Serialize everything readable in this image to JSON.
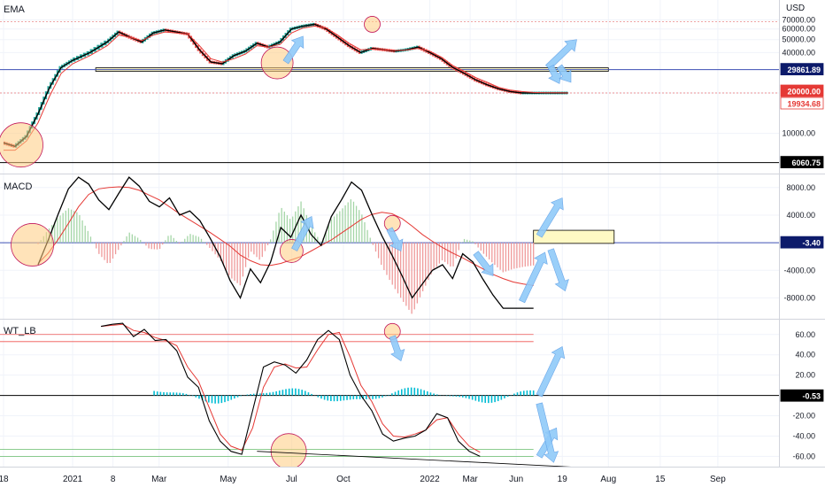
{
  "chart_data": [
    {
      "type": "line",
      "panel": "price",
      "label": "EMA",
      "currency": "USD",
      "y_scale": "log",
      "ylim": [
        5500,
        75000
      ],
      "y_ticks": [
        10000,
        20000,
        30000,
        40000,
        50000,
        60000,
        70000
      ],
      "y_tick_labels": [
        "10000.00",
        "20000.00",
        "30000.00",
        "40000.00",
        "50000.00",
        "60000.00",
        "70000.00"
      ],
      "series": [
        {
          "x": [
            0,
            2,
            4,
            6,
            8,
            10,
            12,
            15,
            18,
            20,
            22,
            24,
            26,
            28,
            30,
            32,
            34,
            36,
            38,
            40,
            42,
            44,
            46,
            48,
            50,
            52,
            54,
            56,
            58,
            60,
            62,
            64,
            66,
            68,
            70,
            72,
            74,
            76,
            78,
            80,
            82,
            84,
            86,
            88,
            90,
            92,
            94,
            96,
            98
          ],
          "values": [
            8500,
            8000,
            9500,
            14000,
            22000,
            31000,
            35000,
            40000,
            48000,
            57000,
            52000,
            48000,
            56000,
            59000,
            57000,
            55000,
            42000,
            34000,
            33000,
            38000,
            41000,
            47000,
            44000,
            48000,
            60000,
            63000,
            65000,
            60000,
            52000,
            45000,
            40000,
            43000,
            42000,
            41000,
            42000,
            44000,
            40000,
            36000,
            31000,
            28000,
            25000,
            23000,
            21500,
            20500,
            20000,
            20000,
            20000,
            20000,
            20000
          ]
        },
        {
          "x": [
            0,
            2,
            4,
            6,
            8,
            10,
            12,
            15,
            18,
            20,
            22,
            24,
            26,
            28,
            30,
            32,
            34,
            36,
            38,
            40,
            42,
            44,
            46,
            48,
            50,
            52,
            54,
            56,
            58,
            60,
            62,
            64,
            66,
            68,
            70,
            72,
            74,
            76,
            78,
            80,
            82,
            84,
            86,
            88,
            90,
            92,
            94,
            96,
            98
          ],
          "values": [
            7500,
            7500,
            8800,
            12000,
            19000,
            28000,
            33000,
            38000,
            45000,
            54000,
            52000,
            49000,
            54000,
            57000,
            56000,
            55000,
            45000,
            36000,
            34000,
            36000,
            39000,
            45000,
            44000,
            46000,
            56000,
            61000,
            63000,
            61000,
            54000,
            47000,
            42000,
            42500,
            42000,
            41500,
            41800,
            43000,
            41000,
            37000,
            32000,
            29000,
            26000,
            24000,
            22000,
            21000,
            20500,
            20200,
            20100,
            20050,
            20000
          ]
        }
      ],
      "markers": [
        20000.0,
        29861.89,
        19934.68,
        6060.75
      ],
      "marker_labels": [
        "20000.00",
        "29861.89",
        "19934.68",
        "6060.75"
      ],
      "zone": [
        29000,
        30800
      ]
    },
    {
      "type": "bar",
      "panel": "macd",
      "label": "MACD",
      "ylim": [
        -10000,
        9000
      ],
      "y_ticks": [
        8000,
        4000,
        -4000,
        -8000
      ],
      "y_tick_labels": [
        "8000.00",
        "4000.00",
        "-4000.00",
        "-8000.00"
      ],
      "x": [
        0,
        2,
        4,
        6,
        8,
        10,
        12,
        14,
        16,
        18,
        20,
        22,
        24,
        26,
        28,
        30,
        32,
        34,
        36,
        38,
        40,
        42,
        44,
        46,
        48,
        50,
        52,
        54,
        56,
        58,
        60,
        62,
        64,
        66,
        68,
        70,
        72,
        74,
        76,
        78,
        80,
        82,
        84,
        86,
        88,
        90,
        92,
        94,
        96,
        98
      ],
      "values": [
        -3200,
        400,
        4200,
        7800,
        9500,
        8500,
        6200,
        4800,
        7200,
        9500,
        8200,
        6000,
        5200,
        6500,
        4000,
        4600,
        3200,
        700,
        -2000,
        -5500,
        -8000,
        -3800,
        -5800,
        -2800,
        2200,
        800,
        4000,
        1200,
        -400,
        3800,
        6200,
        8800,
        7600,
        4200,
        1000,
        -1800,
        -4800,
        -8000,
        -6000,
        -4000,
        -3200,
        -5200,
        -1600,
        -2800,
        -5300,
        -7600,
        -9500,
        -9500,
        -9500,
        -9500
      ],
      "signal": [
        -3000,
        -1500,
        500,
        2800,
        5200,
        7000,
        7800,
        8000,
        8100,
        8000,
        7600,
        6900,
        6200,
        5200,
        4200,
        3300,
        2400,
        1500,
        500,
        -500,
        -1800,
        -2600,
        -3200,
        -3300,
        -3000,
        -2500,
        -2000,
        -1200,
        -400,
        400,
        1400,
        2400,
        3400,
        4100,
        4400,
        4200,
        3500,
        2400,
        1200,
        200,
        -700,
        -1500,
        -2200,
        -3000,
        -3800,
        -4600,
        -5200,
        -5700,
        -6000,
        -6200
      ],
      "current": -3.4,
      "current_label": "-3.40",
      "zone": [
        -100,
        1800
      ]
    },
    {
      "type": "line",
      "panel": "wavetrend",
      "label": "WT_LB",
      "ylim": [
        -64,
        72
      ],
      "y_ticks": [
        60,
        40,
        20,
        -20,
        -40,
        -60
      ],
      "y_tick_labels": [
        "60.00",
        "40.00",
        "20.00",
        "-20.00",
        "-40.00",
        "-60.00"
      ],
      "levels": [
        60,
        53,
        -53,
        -60
      ],
      "x": [
        0,
        2,
        4,
        6,
        8,
        10,
        12,
        14,
        16,
        18,
        20,
        22,
        24,
        26,
        28,
        30,
        32,
        34,
        36,
        38,
        40,
        42,
        44,
        46,
        48,
        50,
        52,
        54,
        56,
        58,
        60,
        62,
        64,
        66,
        68,
        70,
        72,
        74,
        76,
        78,
        80,
        82,
        84,
        86,
        88,
        90,
        92,
        94,
        96,
        98
      ],
      "wt1": [
        null,
        null,
        null,
        null,
        null,
        null,
        null,
        null,
        null,
        68,
        70,
        71,
        58,
        65,
        54,
        55,
        44,
        18,
        8,
        -25,
        -45,
        -55,
        -58,
        -15,
        28,
        33,
        30,
        22,
        35,
        55,
        64,
        55,
        20,
        0,
        -15,
        -38,
        -45,
        -42,
        -40,
        -34,
        -18,
        -22,
        -45,
        -55,
        -60,
        null,
        null,
        null,
        null,
        null
      ],
      "wt2": [
        null,
        null,
        null,
        null,
        null,
        null,
        null,
        null,
        null,
        68,
        69,
        70,
        64,
        62,
        57,
        54,
        49,
        28,
        14,
        -12,
        -38,
        -50,
        -54,
        -32,
        8,
        28,
        31,
        27,
        28,
        45,
        60,
        62,
        38,
        10,
        -6,
        -28,
        -40,
        -41,
        -38,
        -34,
        -24,
        -22,
        -38,
        -50,
        -56,
        null,
        null,
        null,
        null,
        null
      ],
      "hist": [
        0,
        0,
        0,
        0,
        0,
        0,
        0,
        0,
        0,
        0,
        0,
        0,
        0,
        0,
        0,
        0,
        0,
        0,
        0,
        0,
        0,
        0,
        0,
        0,
        0,
        0,
        0,
        0,
        0,
        0,
        0,
        0,
        0,
        0,
        0,
        0,
        0,
        0,
        0,
        0,
        0,
        0,
        0,
        0,
        0,
        0,
        0,
        0,
        0,
        0
      ],
      "current": -0.53,
      "current_label": "-0.53"
    }
  ],
  "x_axis": {
    "range": [
      0,
      134
    ],
    "ticks": [
      {
        "x": 0,
        "label": "18"
      },
      {
        "x": 12,
        "label": "2021"
      },
      {
        "x": 19,
        "label": "8"
      },
      {
        "x": 27,
        "label": "Mar"
      },
      {
        "x": 39,
        "label": "May"
      },
      {
        "x": 50,
        "label": "Jul"
      },
      {
        "x": 59,
        "label": "Oct"
      },
      {
        "x": 74,
        "label": "2022"
      },
      {
        "x": 81,
        "label": "Mar"
      },
      {
        "x": 89,
        "label": "Jun"
      },
      {
        "x": 97,
        "label": "19"
      },
      {
        "x": 105,
        "label": "Aug"
      },
      {
        "x": 114,
        "label": "15"
      },
      {
        "x": 124,
        "label": "Sep"
      }
    ]
  },
  "colors": {
    "up": "#26a69a",
    "down": "#ef5350",
    "macd_line": "#000000",
    "signal_line": "#e53935",
    "hist_up": "#a5d6a7",
    "hist_down": "#ef9a9a",
    "wt_hist": "#00bcd4",
    "zone_fill": "#fff9c4",
    "circle_fill": "#ffcc80",
    "circle_stroke": "#c2185b",
    "arrow": "#90caf9",
    "blue_line": "#3f51b5",
    "marker_red": "#e53935",
    "marker_navy": "#0d1b6b"
  }
}
